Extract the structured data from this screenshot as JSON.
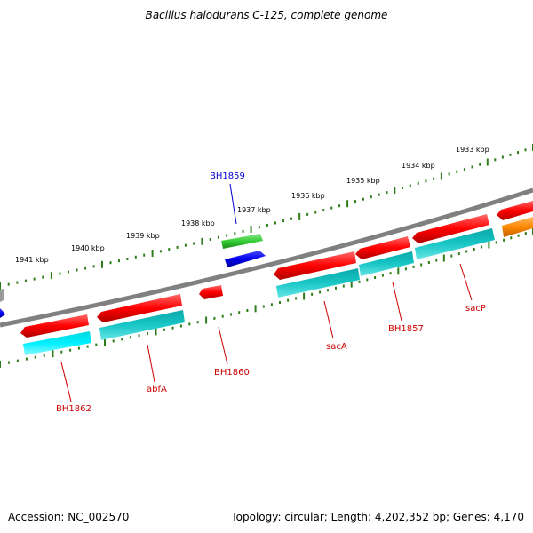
{
  "title": "Bacillus halodurans C-125, complete genome",
  "footer": {
    "accession": "Accession: NC_002570",
    "summary": "Topology: circular; Length: 4,202,352 bp; Genes: 4,170"
  },
  "scale_labels": [
    "1933 kbp",
    "1934 kbp",
    "1935 kbp",
    "1936 kbp",
    "1937 kbp",
    "1938 kbp",
    "1939 kbp",
    "1940 kbp",
    "1941 kbp"
  ],
  "gene_labels": [
    "BH1859",
    "BH1862",
    "abfA",
    "BH1860",
    "sacA",
    "BH1857",
    "sacP"
  ],
  "colors": {
    "backbone": "#808080",
    "tick": "#2e7d1a",
    "red_gene": "#ff0000",
    "cyan_gene": "#00c8c8",
    "green_gene": "#33cc33",
    "blue_gene": "#0000ee",
    "orange_gene": "#ff8800",
    "label_red": "#cc0000",
    "label_blue": "#0000cc"
  }
}
